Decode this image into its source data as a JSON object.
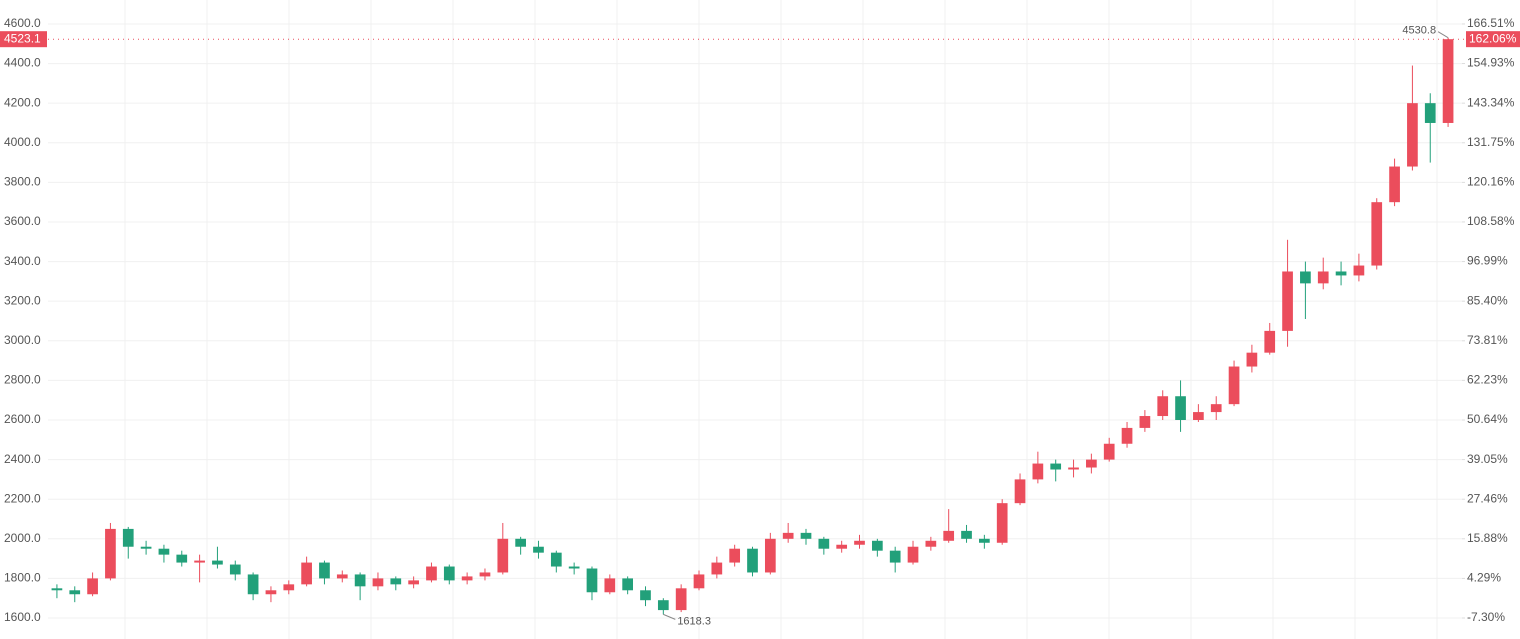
{
  "chart_data": {
    "type": "candlestick",
    "open": [
      1750,
      1740,
      1720,
      1800,
      2050,
      1960,
      1950,
      1920,
      1880,
      1890,
      1870,
      1820,
      1720,
      1740,
      1770,
      1880,
      1800,
      1820,
      1760,
      1800,
      1770,
      1790,
      1860,
      1790,
      1810,
      1830,
      2000,
      1960,
      1930,
      1860,
      1850,
      1730,
      1800,
      1740,
      1690,
      1640,
      1750,
      1820,
      1880,
      1950,
      1830,
      2000,
      2030,
      2000,
      1950,
      1970,
      1990,
      1940,
      1880,
      1960,
      1990,
      2040,
      2000,
      1980,
      2180,
      2300,
      2380,
      2350,
      2360,
      2400,
      2480,
      2560,
      2620,
      2720,
      2600,
      2640,
      2680,
      2870,
      2940,
      3050,
      3350,
      3290,
      3350,
      3330,
      3380,
      3700,
      3880,
      4200,
      4100
    ],
    "high": [
      1770,
      1760,
      1830,
      2080,
      2060,
      1990,
      1970,
      1940,
      1920,
      1960,
      1890,
      1830,
      1760,
      1790,
      1910,
      1890,
      1840,
      1830,
      1830,
      1810,
      1810,
      1880,
      1870,
      1830,
      1850,
      2080,
      2010,
      1990,
      1940,
      1880,
      1860,
      1820,
      1810,
      1760,
      1700,
      1770,
      1840,
      1910,
      1970,
      1960,
      2030,
      2080,
      2050,
      2010,
      1990,
      2020,
      2000,
      1960,
      1990,
      2010,
      2150,
      2070,
      2020,
      2200,
      2330,
      2440,
      2400,
      2400,
      2430,
      2510,
      2590,
      2650,
      2750,
      2800,
      2680,
      2720,
      2900,
      2980,
      3090,
      3510,
      3400,
      3420,
      3400,
      3440,
      3720,
      3920,
      4390,
      4250,
      4530.8
    ],
    "low": [
      1700,
      1680,
      1710,
      1790,
      1900,
      1920,
      1880,
      1860,
      1780,
      1850,
      1790,
      1690,
      1680,
      1720,
      1760,
      1770,
      1780,
      1690,
      1740,
      1740,
      1750,
      1780,
      1770,
      1770,
      1790,
      1820,
      1920,
      1900,
      1830,
      1820,
      1690,
      1720,
      1720,
      1660,
      1618.3,
      1630,
      1740,
      1800,
      1860,
      1810,
      1820,
      1980,
      1970,
      1920,
      1930,
      1950,
      1910,
      1830,
      1870,
      1940,
      1980,
      1980,
      1950,
      1970,
      2170,
      2280,
      2290,
      2310,
      2330,
      2390,
      2460,
      2540,
      2600,
      2540,
      2590,
      2600,
      2670,
      2840,
      2930,
      2970,
      3110,
      3260,
      3280,
      3300,
      3360,
      3680,
      3860,
      3900,
      4080
    ],
    "close": [
      1740,
      1720,
      1800,
      2050,
      1960,
      1950,
      1920,
      1880,
      1890,
      1870,
      1820,
      1720,
      1740,
      1770,
      1880,
      1800,
      1820,
      1760,
      1800,
      1770,
      1790,
      1860,
      1790,
      1810,
      1830,
      2000,
      1960,
      1930,
      1860,
      1850,
      1730,
      1800,
      1740,
      1690,
      1640,
      1750,
      1820,
      1880,
      1950,
      1830,
      2000,
      2030,
      2000,
      1950,
      1970,
      1990,
      1940,
      1880,
      1960,
      1990,
      2040,
      2000,
      1980,
      2180,
      2300,
      2380,
      2350,
      2360,
      2400,
      2480,
      2560,
      2620,
      2720,
      2600,
      2640,
      2680,
      2870,
      2940,
      3050,
      3350,
      3290,
      3350,
      3330,
      3380,
      3700,
      3880,
      4200,
      4100,
      4523.1
    ],
    "up_color": "#eb4d5c",
    "down_color": "#22a07a",
    "ylim": [
      1494,
      4721
    ],
    "yticks": [
      {
        "value": 1600,
        "label": "1600.0"
      },
      {
        "value": 1800,
        "label": "1800.0"
      },
      {
        "value": 2000,
        "label": "2000.0"
      },
      {
        "value": 2200,
        "label": "2200.0"
      },
      {
        "value": 2400,
        "label": "2400.0"
      },
      {
        "value": 2600,
        "label": "2600.0"
      },
      {
        "value": 2800,
        "label": "2800.0"
      },
      {
        "value": 3000,
        "label": "3000.0"
      },
      {
        "value": 3200,
        "label": "3200.0"
      },
      {
        "value": 3400,
        "label": "3400.0"
      },
      {
        "value": 3600,
        "label": "3600.0"
      },
      {
        "value": 3800,
        "label": "3800.0"
      },
      {
        "value": 4000,
        "label": "4000.0"
      },
      {
        "value": 4200,
        "label": "4200.0"
      },
      {
        "value": 4400,
        "label": "4400.0"
      },
      {
        "value": 4600,
        "label": "4600.0"
      }
    ],
    "y2lim": [
      -13.44,
      173.52
    ],
    "y2ticks": [
      {
        "value": -7.3,
        "label": "-7.30%"
      },
      {
        "value": 4.29,
        "label": "4.29%"
      },
      {
        "value": 15.88,
        "label": "15.88%"
      },
      {
        "value": 27.46,
        "label": "27.46%"
      },
      {
        "value": 39.05,
        "label": "39.05%"
      },
      {
        "value": 50.64,
        "label": "50.64%"
      },
      {
        "value": 62.23,
        "label": "62.23%"
      },
      {
        "value": 73.81,
        "label": "73.81%"
      },
      {
        "value": 85.4,
        "label": "85.40%"
      },
      {
        "value": 96.99,
        "label": "96.99%"
      },
      {
        "value": 108.58,
        "label": "108.58%"
      },
      {
        "value": 120.16,
        "label": "120.16%"
      },
      {
        "value": 131.75,
        "label": "131.75%"
      },
      {
        "value": 143.34,
        "label": "143.34%"
      },
      {
        "value": 154.93,
        "label": "154.93%"
      },
      {
        "value": 166.51,
        "label": "166.51%"
      }
    ],
    "grid": true,
    "last_price": 4523.1,
    "last_change": {
      "value": 162.06,
      "label": "162.06%"
    },
    "high_marker": 4530.8,
    "low_marker": 1618.3
  }
}
